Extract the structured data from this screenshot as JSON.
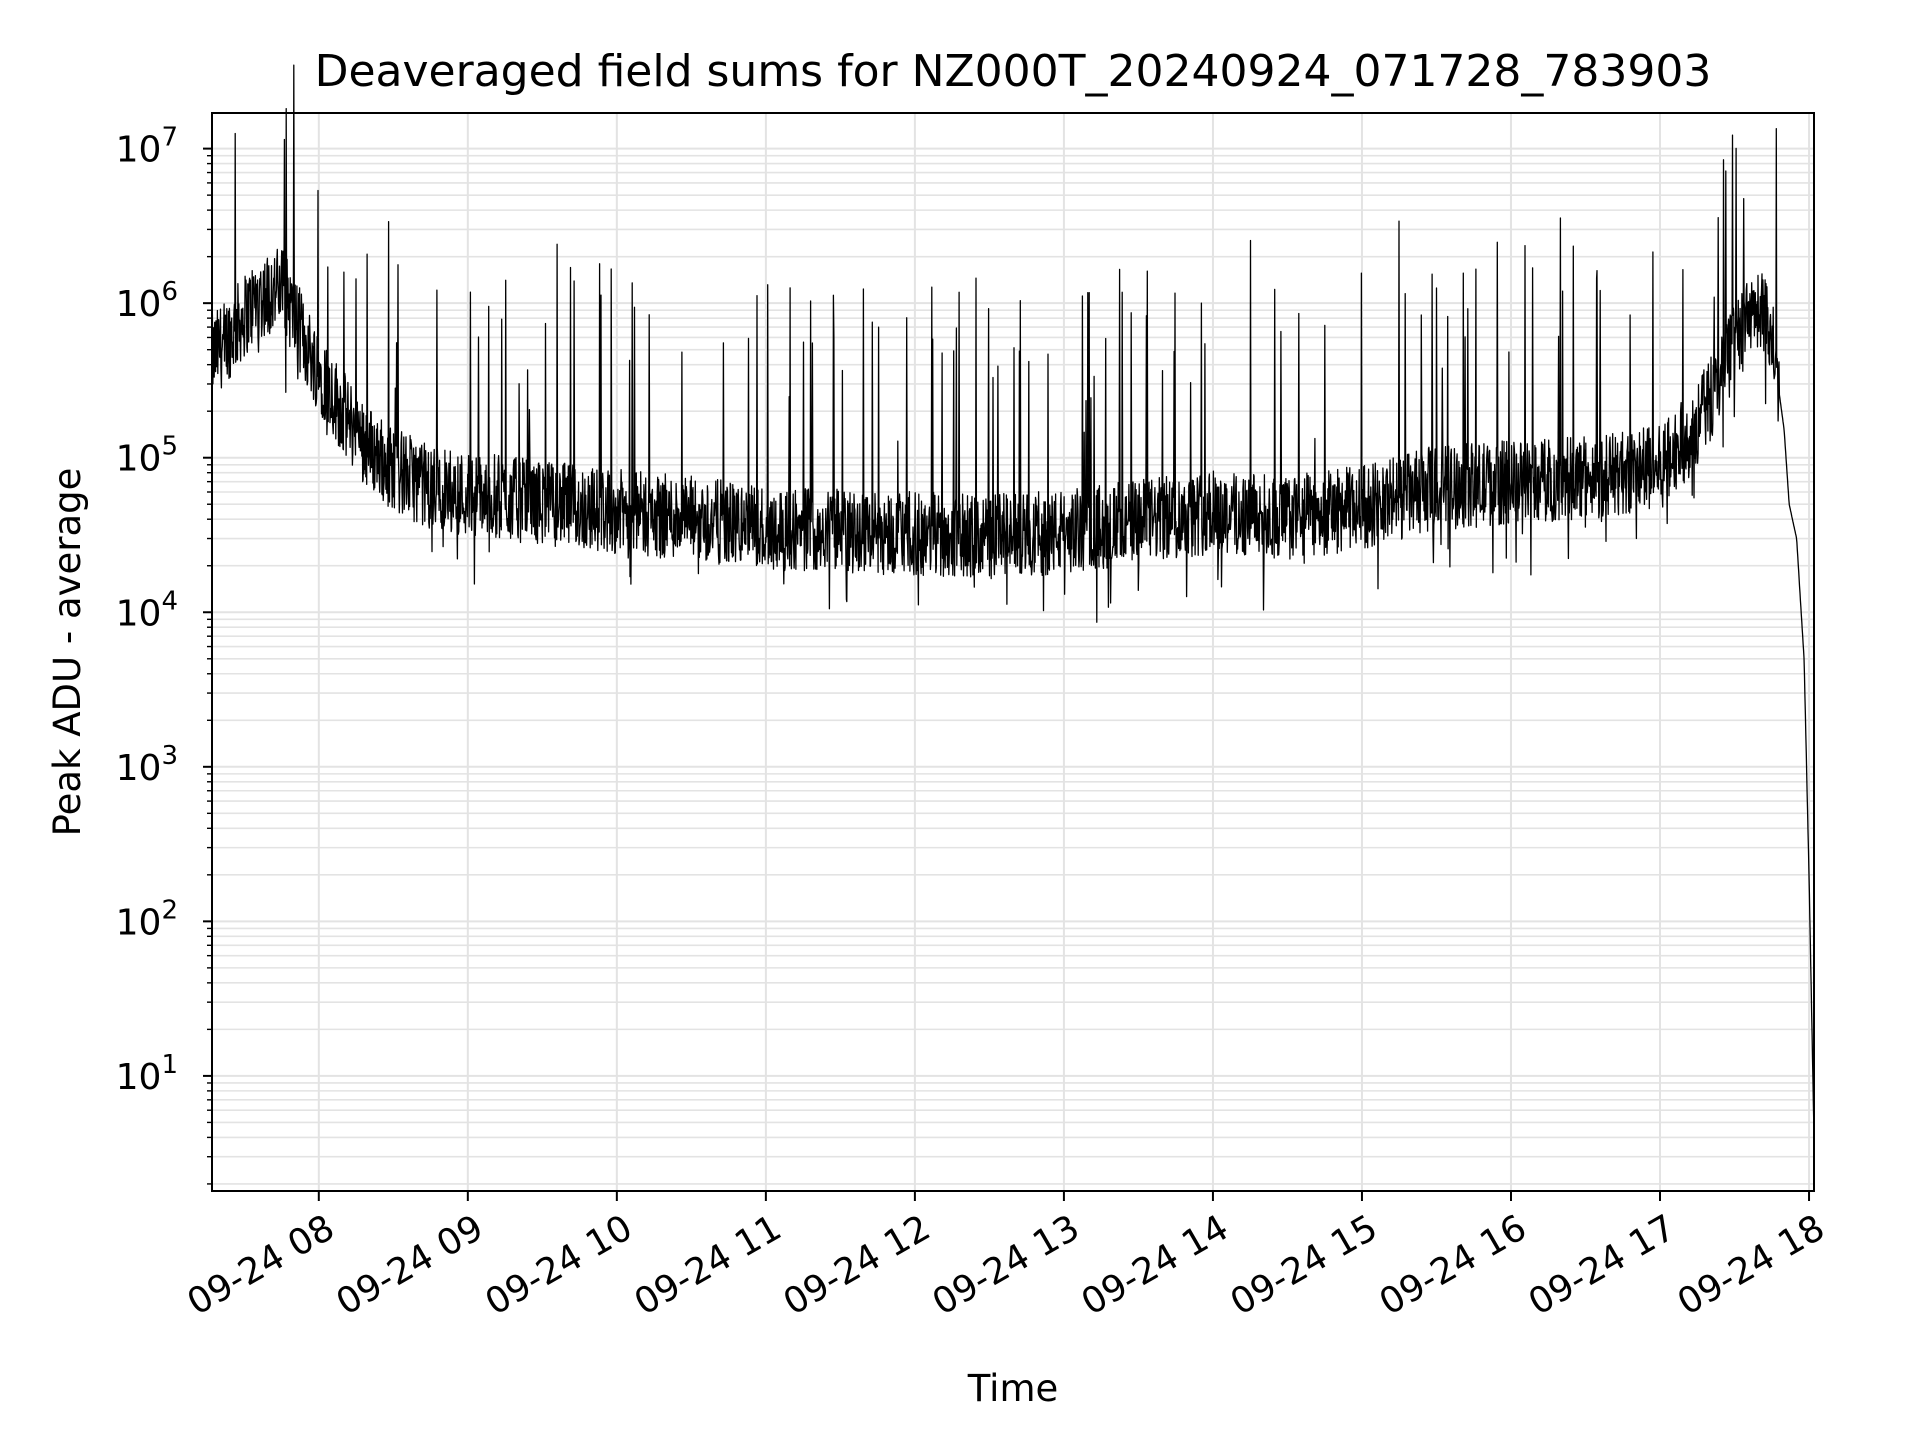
{
  "chart_data": {
    "type": "line",
    "title": "Deaveraged field sums for NZ000T_20240924_071728_783903",
    "xlabel": "Time",
    "ylabel": "Peak ADU - average",
    "y_scale": "log",
    "grid": true,
    "ylim": [
      1.8,
      17000000
    ],
    "xlim": [
      "09-24 07:17",
      "09-24 18:02"
    ],
    "x_ticks": [
      "09-24 08",
      "09-24 09",
      "09-24 10",
      "09-24 11",
      "09-24 12",
      "09-24 13",
      "09-24 14",
      "09-24 15",
      "09-24 16",
      "09-24 17",
      "09-24 18"
    ],
    "y_ticks": [
      {
        "base": "10",
        "exp": "1",
        "value": 10
      },
      {
        "base": "10",
        "exp": "2",
        "value": 100
      },
      {
        "base": "10",
        "exp": "3",
        "value": 1000
      },
      {
        "base": "10",
        "exp": "4",
        "value": 10000
      },
      {
        "base": "10",
        "exp": "5",
        "value": 100000
      },
      {
        "base": "10",
        "exp": "6",
        "value": 1000000
      },
      {
        "base": "10",
        "exp": "7",
        "value": 10000000
      }
    ],
    "series": [
      {
        "color": "#000000",
        "points": [
          [
            "09-24 07:17",
            420000
          ],
          [
            "09-24 07:25",
            600000
          ],
          [
            "09-24 07:35",
            1000000
          ],
          [
            "09-24 07:45",
            1200000
          ],
          [
            "09-24 07:55",
            500000
          ],
          [
            "09-24 08:00",
            350000
          ],
          [
            "09-24 08:10",
            180000
          ],
          [
            "09-24 08:20",
            110000
          ],
          [
            "09-24 08:30",
            80000
          ],
          [
            "09-24 08:45",
            60000
          ],
          [
            "09-24 09:00",
            55000
          ],
          [
            "09-24 09:30",
            48000
          ],
          [
            "09-24 10:00",
            42000
          ],
          [
            "09-24 10:30",
            38000
          ],
          [
            "09-24 11:00",
            33000
          ],
          [
            "09-24 11:30",
            32000
          ],
          [
            "09-24 12:00",
            30000
          ],
          [
            "09-24 12:30",
            29000
          ],
          [
            "09-24 13:00",
            31000
          ],
          [
            "09-24 13:30",
            36000
          ],
          [
            "09-24 14:00",
            42000
          ],
          [
            "09-24 14:30",
            38000
          ],
          [
            "09-24 15:00",
            45000
          ],
          [
            "09-24 15:30",
            60000
          ],
          [
            "09-24 16:00",
            65000
          ],
          [
            "09-24 16:30",
            70000
          ],
          [
            "09-24 17:00",
            80000
          ],
          [
            "09-24 17:15",
            150000
          ],
          [
            "09-24 17:30",
            500000
          ],
          [
            "09-24 17:40",
            900000
          ],
          [
            "09-24 17:45",
            600000
          ],
          [
            "09-24 17:50",
            150000
          ],
          [
            "09-24 17:52",
            50000
          ],
          [
            "09-24 17:55",
            30000
          ],
          [
            "09-24 17:58",
            5000
          ],
          [
            "09-24 18:00",
            200
          ],
          [
            "09-24 18:02",
            4
          ]
        ]
      }
    ]
  }
}
